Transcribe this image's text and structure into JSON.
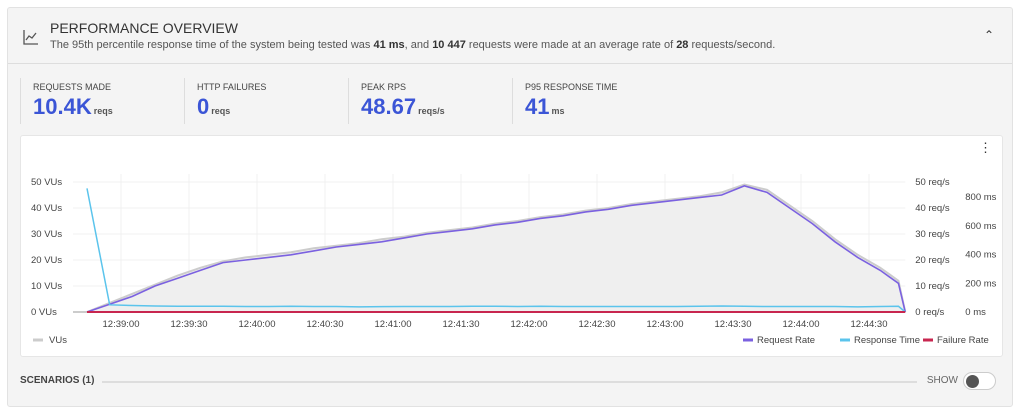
{
  "header": {
    "title": "PERFORMANCE OVERVIEW",
    "summary_parts": [
      "The 95th percentile response time of the system being tested was ",
      "41 ms",
      ", and ",
      "10 447",
      " requests were made at an average rate of ",
      "28",
      " requests/second."
    ],
    "icon": "line-chart-icon",
    "collapse_icon": "chevron-up-icon"
  },
  "stats": [
    {
      "label": "REQUESTS MADE",
      "value": "10.4K",
      "unit": "reqs"
    },
    {
      "label": "HTTP FAILURES",
      "value": "0",
      "unit": "reqs"
    },
    {
      "label": "PEAK RPS",
      "value": "48.67",
      "unit": "reqs/s"
    },
    {
      "label": "P95 RESPONSE TIME",
      "value": "41",
      "unit": "ms"
    }
  ],
  "chart_data": {
    "type": "line",
    "x_ticks": [
      "12:39:00",
      "12:39:30",
      "12:40:00",
      "12:40:30",
      "12:41:00",
      "12:41:30",
      "12:42:00",
      "12:42:30",
      "12:43:00",
      "12:43:30",
      "12:44:00",
      "12:44:30"
    ],
    "y_left_ticks": [
      "0 VUs",
      "10 VUs",
      "20 VUs",
      "30 VUs",
      "40 VUs",
      "50 VUs"
    ],
    "y_right1_ticks": [
      "0 req/s",
      "10 req/s",
      "20 req/s",
      "30 req/s",
      "40 req/s",
      "50 req/s"
    ],
    "y_right2_ticks": [
      "0 ms",
      "200 ms",
      "400 ms",
      "600 ms",
      "800 ms"
    ],
    "ylim_vus": [
      0,
      50
    ],
    "ylim_rps": [
      0,
      50
    ],
    "ylim_ms": [
      0,
      900
    ],
    "x": [
      "12:38:45",
      "12:38:55",
      "12:39:05",
      "12:39:15",
      "12:39:25",
      "12:39:35",
      "12:39:45",
      "12:39:55",
      "12:40:05",
      "12:40:15",
      "12:40:25",
      "12:40:35",
      "12:40:45",
      "12:40:55",
      "12:41:05",
      "12:41:15",
      "12:41:25",
      "12:41:35",
      "12:41:45",
      "12:41:55",
      "12:42:05",
      "12:42:15",
      "12:42:25",
      "12:42:35",
      "12:42:45",
      "12:42:55",
      "12:43:05",
      "12:43:15",
      "12:43:25",
      "12:43:35",
      "12:43:45",
      "12:43:55",
      "12:44:05",
      "12:44:15",
      "12:44:25",
      "12:44:35",
      "12:44:43",
      "12:44:46"
    ],
    "series": [
      {
        "name": "VUs",
        "color": "#cccccc",
        "values": [
          0,
          3.5,
          7,
          10.5,
          14,
          17,
          19.5,
          21,
          22,
          23,
          24.5,
          25.5,
          26.5,
          28,
          29,
          30.5,
          31.5,
          32.5,
          34,
          35,
          36.5,
          37.5,
          39,
          40,
          41.5,
          42.5,
          43.5,
          44.5,
          46,
          49,
          47,
          41,
          35,
          28,
          22,
          17,
          12,
          0
        ]
      },
      {
        "name": "Request Rate",
        "color": "#7b61e0",
        "values": [
          0,
          3,
          6,
          10,
          13,
          16,
          19,
          20,
          21,
          22,
          23.5,
          25,
          26,
          27,
          28.5,
          30,
          31,
          32,
          33.5,
          34.5,
          36,
          37,
          38.5,
          39.5,
          41,
          42,
          43,
          44,
          45,
          48.5,
          46,
          40,
          34,
          27,
          21,
          16,
          11,
          0
        ]
      },
      {
        "name": "Response Time",
        "color": "#5bc4ec",
        "values_ms": [
          860,
          50,
          45,
          42,
          40,
          40,
          40,
          38,
          38,
          40,
          38,
          38,
          36,
          37,
          38,
          38,
          38,
          40,
          40,
          38,
          40,
          38,
          38,
          38,
          38,
          38,
          38,
          40,
          42,
          40,
          38,
          38,
          38,
          38,
          36,
          38,
          40,
          0
        ]
      },
      {
        "name": "Failure Rate",
        "color": "#c8264f",
        "values": [
          0,
          0,
          0,
          0,
          0,
          0,
          0,
          0,
          0,
          0,
          0,
          0,
          0,
          0,
          0,
          0,
          0,
          0,
          0,
          0,
          0,
          0,
          0,
          0,
          0,
          0,
          0,
          0,
          0,
          0,
          0,
          0,
          0,
          0,
          0,
          0,
          0,
          0
        ]
      }
    ],
    "legend_left": [
      "VUs"
    ],
    "legend_right": [
      "Request Rate",
      "Response Time",
      "Failure Rate"
    ],
    "grid": true
  },
  "scenarios": {
    "label": "SCENARIOS (1)",
    "toggle_label": "SHOW",
    "toggle_on": false
  }
}
